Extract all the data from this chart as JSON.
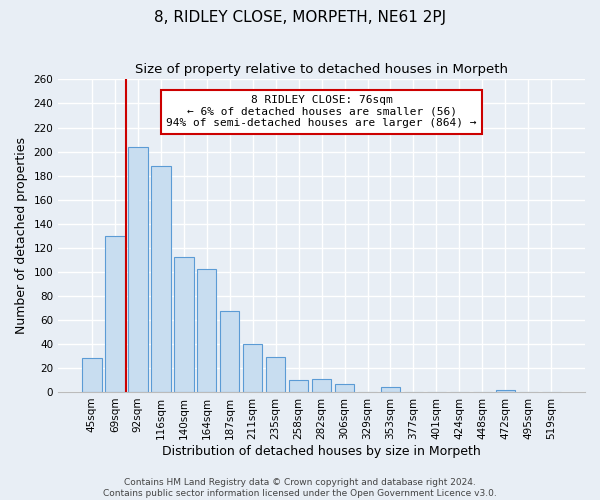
{
  "title": "8, RIDLEY CLOSE, MORPETH, NE61 2PJ",
  "subtitle": "Size of property relative to detached houses in Morpeth",
  "xlabel": "Distribution of detached houses by size in Morpeth",
  "ylabel": "Number of detached properties",
  "bar_labels": [
    "45sqm",
    "69sqm",
    "92sqm",
    "116sqm",
    "140sqm",
    "164sqm",
    "187sqm",
    "211sqm",
    "235sqm",
    "258sqm",
    "282sqm",
    "306sqm",
    "329sqm",
    "353sqm",
    "377sqm",
    "401sqm",
    "424sqm",
    "448sqm",
    "472sqm",
    "495sqm",
    "519sqm"
  ],
  "bar_values": [
    28,
    130,
    204,
    188,
    112,
    102,
    67,
    40,
    29,
    10,
    11,
    7,
    0,
    4,
    0,
    0,
    0,
    0,
    2,
    0,
    0
  ],
  "bar_face_color": "#c8ddf0",
  "bar_edge_color": "#5b9bd5",
  "marker_line_color": "#cc0000",
  "annotation_line1": "8 RIDLEY CLOSE: 76sqm",
  "annotation_line2": "← 6% of detached houses are smaller (56)",
  "annotation_line3": "94% of semi-detached houses are larger (864) →",
  "annotation_box_facecolor": "#ffffff",
  "annotation_box_edgecolor": "#cc0000",
  "ylim": [
    0,
    260
  ],
  "yticks": [
    0,
    20,
    40,
    60,
    80,
    100,
    120,
    140,
    160,
    180,
    200,
    220,
    240,
    260
  ],
  "bg_color": "#e8eef5",
  "grid_color": "#ffffff",
  "title_fontsize": 11,
  "subtitle_fontsize": 9.5,
  "axis_label_fontsize": 9,
  "tick_fontsize": 7.5,
  "annotation_fontsize": 8,
  "footer_fontsize": 6.5,
  "footer_line1": "Contains HM Land Registry data © Crown copyright and database right 2024.",
  "footer_line2": "Contains public sector information licensed under the Open Government Licence v3.0."
}
